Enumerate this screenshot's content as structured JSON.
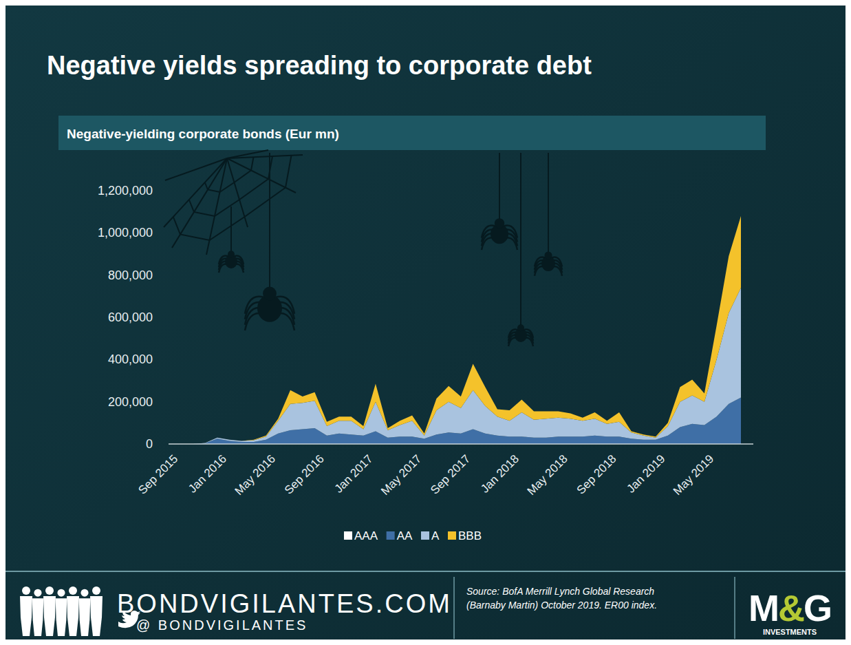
{
  "chart_data": {
    "type": "area",
    "title": "Negative yields spreading to corporate debt",
    "subtitle": "Negative-yielding corporate bonds (Eur mn)",
    "stacked": true,
    "grid": false,
    "legend": "bottom",
    "categories": [
      "Sep 2015",
      null,
      null,
      null,
      "Jan 2016",
      null,
      null,
      null,
      "May 2016",
      null,
      null,
      null,
      "Sep 2016",
      null,
      null,
      null,
      "Jan 2017",
      null,
      null,
      null,
      "May 2017",
      null,
      null,
      null,
      "Sep 2017",
      null,
      null,
      null,
      "Jan 2018",
      null,
      null,
      null,
      "May 2018",
      null,
      null,
      null,
      "Sep 2018",
      null,
      null,
      null,
      "Jan 2019",
      null,
      null,
      null,
      "May 2019",
      null,
      null,
      null
    ],
    "ylim": [
      0,
      1200000
    ],
    "yticks": [
      0,
      {
        "value": 200000,
        "label": "200,000"
      },
      {
        "value": 400000,
        "label": "400,000"
      },
      {
        "value": 600000,
        "label": "600,000"
      },
      {
        "value": 800000,
        "label": "800,000"
      },
      {
        "value": 1000000,
        "label": "1,000,000"
      },
      {
        "value": 1200000,
        "label": "1,200,000"
      }
    ],
    "series": [
      {
        "name": "AAA",
        "color": "#ffffff",
        "values": [
          0,
          0,
          0,
          0,
          0,
          0,
          0,
          0,
          0,
          0,
          0,
          0,
          0,
          0,
          0,
          0,
          0,
          0,
          0,
          0,
          0,
          0,
          0,
          0,
          0,
          0,
          0,
          0,
          0,
          0,
          0,
          0,
          0,
          0,
          0,
          0,
          0,
          0,
          0,
          0,
          0,
          0,
          0,
          0,
          0,
          0,
          0,
          0
        ]
      },
      {
        "name": "AA",
        "color": "#3f6fa6",
        "values": [
          0,
          0,
          0,
          3000,
          25000,
          15000,
          10000,
          10000,
          20000,
          50000,
          65000,
          70000,
          75000,
          40000,
          50000,
          45000,
          40000,
          60000,
          30000,
          35000,
          35000,
          25000,
          45000,
          55000,
          50000,
          70000,
          50000,
          40000,
          35000,
          35000,
          30000,
          30000,
          35000,
          35000,
          35000,
          40000,
          35000,
          35000,
          25000,
          20000,
          20000,
          40000,
          80000,
          95000,
          90000,
          130000,
          190000,
          220000
        ]
      },
      {
        "name": "A",
        "color": "#a9c3df",
        "values": [
          0,
          0,
          0,
          2000,
          5000,
          5000,
          5000,
          8000,
          15000,
          60000,
          125000,
          125000,
          130000,
          45000,
          60000,
          65000,
          30000,
          140000,
          35000,
          55000,
          75000,
          15000,
          115000,
          145000,
          120000,
          185000,
          130000,
          90000,
          75000,
          115000,
          85000,
          90000,
          90000,
          85000,
          75000,
          80000,
          60000,
          70000,
          30000,
          20000,
          10000,
          45000,
          120000,
          135000,
          110000,
          270000,
          430000,
          520000
        ]
      },
      {
        "name": "BBB",
        "color": "#f4c22b",
        "values": [
          0,
          0,
          0,
          0,
          0,
          0,
          0,
          2000,
          5000,
          10000,
          65000,
          30000,
          40000,
          20000,
          20000,
          20000,
          15000,
          85000,
          10000,
          20000,
          25000,
          10000,
          55000,
          75000,
          55000,
          125000,
          90000,
          35000,
          50000,
          60000,
          40000,
          35000,
          30000,
          25000,
          15000,
          30000,
          15000,
          45000,
          5000,
          5000,
          5000,
          15000,
          70000,
          75000,
          40000,
          160000,
          270000,
          340000
        ]
      }
    ]
  },
  "footer": {
    "site": "BONDVIGILANTES.COM",
    "handle": "@ BONDVIGILANTES",
    "source": [
      "Source: BofA Merrill Lynch Global Research",
      "(Barnaby Martin) October 2019. ER00 index."
    ],
    "logo": "M&G",
    "logo_sub": "INVESTMENTS"
  }
}
